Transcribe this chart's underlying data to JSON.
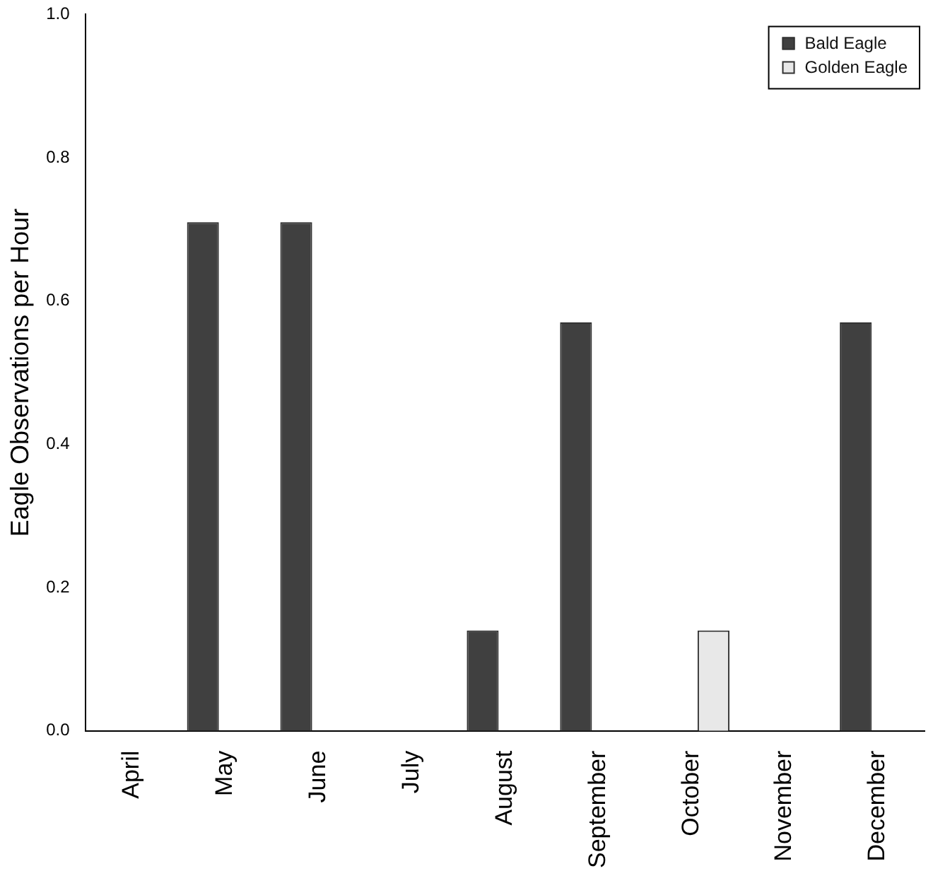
{
  "chart_data": {
    "type": "bar",
    "ylabel": "Eagle Observations per Hour",
    "categories": [
      "April",
      "May",
      "June",
      "July",
      "August",
      "September",
      "October",
      "November",
      "December"
    ],
    "series": [
      {
        "name": "Bald Eagle",
        "color": "#404040",
        "values": [
          0,
          0.71,
          0.71,
          0,
          0.14,
          0.57,
          0,
          0,
          0.57
        ]
      },
      {
        "name": "Golden Eagle",
        "color": "#e8e8e8",
        "values": [
          0,
          0,
          0,
          0,
          0,
          0,
          0.14,
          0,
          0
        ]
      }
    ],
    "ylim": [
      0,
      1
    ],
    "yticks": [
      {
        "value": 0,
        "label": "0.0"
      },
      {
        "value": 0.2,
        "label": "0.2"
      },
      {
        "value": 0.4,
        "label": "0.4"
      },
      {
        "value": 0.6,
        "label": "0.6"
      },
      {
        "value": 0.8,
        "label": "0.8"
      },
      {
        "value": 1,
        "label": "1.0"
      }
    ],
    "grid": false,
    "legend": "top right"
  }
}
